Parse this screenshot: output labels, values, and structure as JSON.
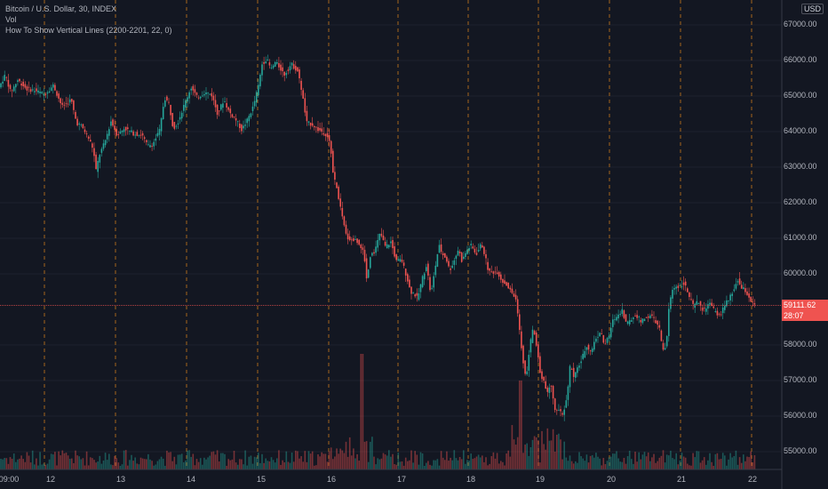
{
  "legend": {
    "symbol": "Bitcoin / U.S. Dollar, 30, INDEX",
    "vol": "Vol",
    "indicator": "How To Show Vertical Lines (2200-2201, 22, 0)"
  },
  "currency": "USD",
  "current_price": "59111.62",
  "countdown": "28:07",
  "colors": {
    "bg": "#131722",
    "up": "#26a69a",
    "down": "#ef5350",
    "vline": "#f7931a",
    "grid": "#2a2e39"
  },
  "chart_data": {
    "type": "candlestick",
    "y_ticks": [
      "67000.00",
      "66000.00",
      "65000.00",
      "64000.00",
      "63000.00",
      "62000.00",
      "61000.00",
      "60000.00",
      "58000.00",
      "57000.00",
      "56000.00",
      "55000.00"
    ],
    "x_ticks": [
      "09:00",
      "12",
      "13",
      "14",
      "15",
      "16",
      "17",
      "18",
      "19",
      "20",
      "21",
      "22"
    ],
    "ylim": [
      54700,
      67200
    ],
    "price_path": [
      [
        0,
        65300
      ],
      [
        6,
        65600
      ],
      [
        12,
        65100
      ],
      [
        20,
        65450
      ],
      [
        30,
        65200
      ],
      [
        40,
        65150
      ],
      [
        50,
        65050
      ],
      [
        60,
        65300
      ],
      [
        70,
        64700
      ],
      [
        80,
        64900
      ],
      [
        86,
        64250
      ],
      [
        92,
        64150
      ],
      [
        100,
        63800
      ],
      [
        105,
        63500
      ],
      [
        108,
        62900
      ],
      [
        112,
        63350
      ],
      [
        118,
        63700
      ],
      [
        125,
        64300
      ],
      [
        132,
        63900
      ],
      [
        140,
        64100
      ],
      [
        150,
        63950
      ],
      [
        160,
        63900
      ],
      [
        166,
        63600
      ],
      [
        172,
        63650
      ],
      [
        180,
        64050
      ],
      [
        185,
        64950
      ],
      [
        190,
        64800
      ],
      [
        195,
        64100
      ],
      [
        200,
        64250
      ],
      [
        208,
        64800
      ],
      [
        215,
        65250
      ],
      [
        222,
        64950
      ],
      [
        230,
        65100
      ],
      [
        238,
        65050
      ],
      [
        245,
        64500
      ],
      [
        252,
        64900
      ],
      [
        258,
        64550
      ],
      [
        265,
        64350
      ],
      [
        272,
        64050
      ],
      [
        278,
        64300
      ],
      [
        285,
        64700
      ],
      [
        291,
        65300
      ],
      [
        295,
        65900
      ],
      [
        300,
        66050
      ],
      [
        305,
        65750
      ],
      [
        310,
        65950
      ],
      [
        315,
        65800
      ],
      [
        320,
        65600
      ],
      [
        328,
        65900
      ],
      [
        335,
        65700
      ],
      [
        340,
        65100
      ],
      [
        345,
        64250
      ],
      [
        352,
        64200
      ],
      [
        358,
        64050
      ],
      [
        363,
        64000
      ],
      [
        368,
        63900
      ],
      [
        372,
        63600
      ],
      [
        375,
        62800
      ],
      [
        380,
        62300
      ],
      [
        385,
        61600
      ],
      [
        390,
        61050
      ],
      [
        395,
        60950
      ],
      [
        400,
        60950
      ],
      [
        406,
        60800
      ],
      [
        410,
        60500
      ],
      [
        413,
        59800
      ],
      [
        417,
        60550
      ],
      [
        422,
        60650
      ],
      [
        428,
        61150
      ],
      [
        434,
        60750
      ],
      [
        440,
        60900
      ],
      [
        446,
        60350
      ],
      [
        452,
        60400
      ],
      [
        458,
        59900
      ],
      [
        462,
        59500
      ],
      [
        466,
        59450
      ],
      [
        470,
        59300
      ],
      [
        475,
        59850
      ],
      [
        480,
        60250
      ],
      [
        485,
        59400
      ],
      [
        490,
        60200
      ],
      [
        494,
        60800
      ],
      [
        498,
        60550
      ],
      [
        502,
        60450
      ],
      [
        506,
        60100
      ],
      [
        510,
        60300
      ],
      [
        516,
        60700
      ],
      [
        520,
        60350
      ],
      [
        525,
        60650
      ],
      [
        530,
        60800
      ],
      [
        536,
        60550
      ],
      [
        542,
        60850
      ],
      [
        546,
        60500
      ],
      [
        550,
        60050
      ],
      [
        555,
        60050
      ],
      [
        560,
        60050
      ],
      [
        565,
        59800
      ],
      [
        570,
        59700
      ],
      [
        575,
        59500
      ],
      [
        580,
        59350
      ],
      [
        584,
        58600
      ],
      [
        588,
        57700
      ],
      [
        592,
        57000
      ],
      [
        596,
        57900
      ],
      [
        600,
        58500
      ],
      [
        604,
        58000
      ],
      [
        608,
        57200
      ],
      [
        612,
        57000
      ],
      [
        616,
        56600
      ],
      [
        620,
        56950
      ],
      [
        624,
        56200
      ],
      [
        628,
        56200
      ],
      [
        633,
        56000
      ],
      [
        638,
        56500
      ],
      [
        642,
        57500
      ],
      [
        646,
        57050
      ],
      [
        650,
        57350
      ],
      [
        655,
        57600
      ],
      [
        660,
        58000
      ],
      [
        665,
        57800
      ],
      [
        670,
        58150
      ],
      [
        676,
        58400
      ],
      [
        680,
        58000
      ],
      [
        685,
        58200
      ],
      [
        690,
        58700
      ],
      [
        696,
        58850
      ],
      [
        700,
        59000
      ],
      [
        705,
        58600
      ],
      [
        710,
        58700
      ],
      [
        716,
        58850
      ],
      [
        722,
        58650
      ],
      [
        728,
        58800
      ],
      [
        734,
        58800
      ],
      [
        738,
        58650
      ],
      [
        742,
        58500
      ],
      [
        746,
        57800
      ],
      [
        750,
        58000
      ],
      [
        753,
        59050
      ],
      [
        756,
        59500
      ],
      [
        760,
        59650
      ],
      [
        765,
        59650
      ],
      [
        770,
        59750
      ],
      [
        775,
        59400
      ],
      [
        780,
        59100
      ],
      [
        786,
        59200
      ],
      [
        792,
        58950
      ],
      [
        798,
        59200
      ],
      [
        804,
        58950
      ],
      [
        810,
        58800
      ],
      [
        816,
        59150
      ],
      [
        820,
        59250
      ],
      [
        826,
        59550
      ],
      [
        830,
        59850
      ],
      [
        834,
        59600
      ],
      [
        838,
        59550
      ],
      [
        842,
        59400
      ],
      [
        846,
        59200
      ],
      [
        850,
        59100
      ]
    ]
  }
}
